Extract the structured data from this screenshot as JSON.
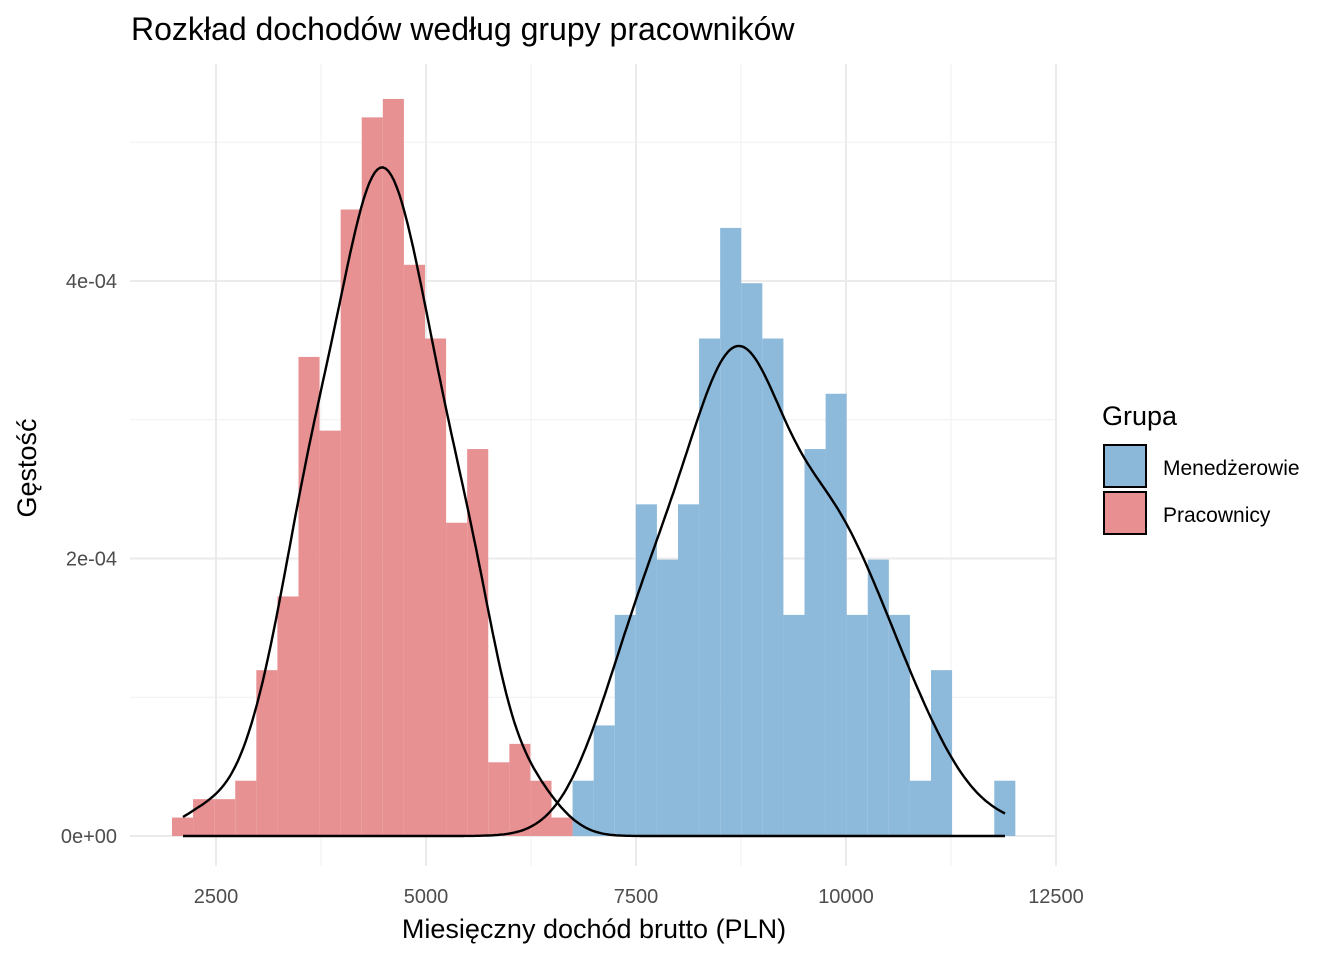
{
  "chart_data": {
    "type": "histogram",
    "title": "Rozkład dochodów według grupy pracowników",
    "xlabel": "Miesięczny dochód brutto (PLN)",
    "ylabel": "Gęstość",
    "xlim": [
      1600,
      12650
    ],
    "ylim": [
      -2.5e-05,
      0.00055
    ],
    "x_ticks": [
      2500,
      5000,
      7500,
      10000,
      12500
    ],
    "x_tick_labels": [
      "2500",
      "5000",
      "7500",
      "10000",
      "12500"
    ],
    "y_ticks": [
      0,
      0.0002,
      0.0004
    ],
    "y_tick_labels": [
      "0e+00",
      "2e-04",
      "4e-04"
    ],
    "grid": true,
    "bin_start": 1976,
    "bin_width": 251,
    "legend": {
      "title": "Grupa",
      "position": "right"
    },
    "series": [
      {
        "name": "Menedżerowie",
        "color": "#8BB8D9",
        "first_bin": 19,
        "n": 100,
        "counts": [
          1,
          2,
          4,
          6,
          5,
          6,
          9,
          11,
          10,
          9,
          4,
          7,
          8,
          4,
          5,
          4,
          1,
          3,
          0,
          0,
          1
        ]
      },
      {
        "name": "Pracownicy",
        "color": "#E88F91",
        "first_bin": 0,
        "n": 300,
        "counts": [
          1,
          2,
          2,
          3,
          9,
          13,
          26,
          22,
          34,
          39,
          40,
          31,
          27,
          17,
          21,
          4,
          5,
          3,
          1
        ]
      }
    ],
    "density_range": [
      2107,
      11893
    ]
  }
}
